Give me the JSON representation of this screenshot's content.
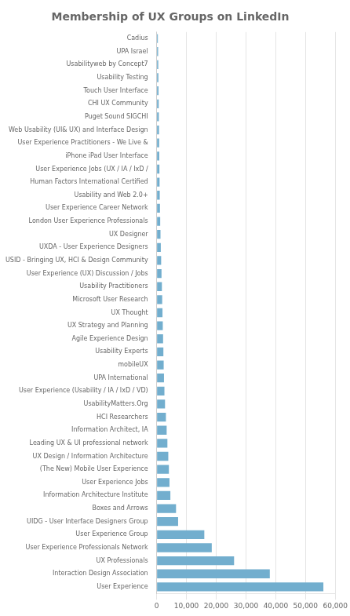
{
  "chart_data": {
    "type": "bar",
    "orientation": "horizontal",
    "title": "Membership of UX Groups on LinkedIn",
    "categories": [
      "Cadius",
      "UPA Israel",
      "Usabilityweb by Concept7",
      "Usability Testing",
      "Touch User Interface",
      "CHI UX Community",
      "Puget Sound SIGCHI",
      "Web Usability (UI& UX) and Interface Design",
      "User Experience Practitioners - We Live &",
      "iPhone iPad User Interface",
      "User Experience Jobs (UX / IA / IxD /",
      "Human Factors International Certified",
      "Usability and Web 2.0+",
      "User Experience Career Network",
      "London User Experience Professionals",
      "UX Designer",
      "UXDA - User Experience Designers",
      "USID - Bringing UX, HCI & Design Community",
      "User Experience (UX) Discussion / Jobs",
      "Usability Practitioners",
      "Microsoft User Research",
      "UX Thought",
      "UX Strategy and Planning",
      "Agile Experience Design",
      "Usability Experts",
      "mobileUX",
      "UPA International",
      "User Experience (Usability / IA / IxD / VD)",
      "UsabilityMatters.Org",
      "HCI Researchers",
      "Information Architect, IA",
      "Leading UX & UI professional network",
      "UX Design / Information Architecture",
      "(The New) Mobile User Experience",
      "User Experience Jobs",
      "Information Architecture Institute",
      "Boxes and Arrows",
      "UIDG - User Interface Designers Group",
      "User Experience Group",
      "User Experience Professionals Network",
      "UX Professionals",
      "Interaction Design Association",
      "User Experience"
    ],
    "values": [
      400,
      480,
      530,
      570,
      620,
      680,
      720,
      780,
      830,
      870,
      920,
      970,
      1030,
      1100,
      1180,
      1280,
      1380,
      1500,
      1620,
      1750,
      1850,
      1950,
      2050,
      2150,
      2250,
      2350,
      2450,
      2600,
      2800,
      3100,
      3350,
      3600,
      3900,
      4100,
      4300,
      4600,
      6500,
      7200,
      16000,
      18500,
      26000,
      38000,
      56000
    ],
    "color": "#72aece",
    "xlim": [
      0,
      60000
    ],
    "xticks": [
      0,
      {
        "value": 10000,
        "label": "10,000"
      },
      {
        "value": 20000,
        "label": "20,000"
      },
      {
        "value": 30000,
        "label": "30,000"
      },
      {
        "value": 40000,
        "label": "40,000"
      },
      {
        "value": 50000,
        "label": "50,000"
      },
      {
        "value": 60000,
        "label": "60,000"
      }
    ],
    "grid": true
  }
}
